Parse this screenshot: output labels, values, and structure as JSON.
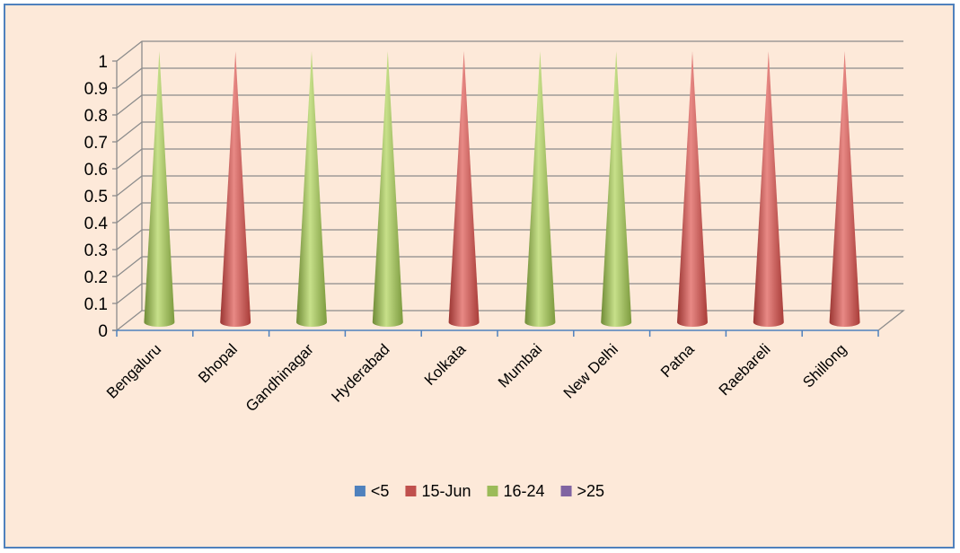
{
  "chart_data": {
    "type": "bar",
    "bar_shape": "cone",
    "view": "3d",
    "categories": [
      "Bengaluru",
      "Bhopal",
      "Gandhinagar",
      "Hyderabad",
      "Kolkata",
      "Mumbai",
      "New Delhi",
      "Patna",
      "Raebareli",
      "Shillong"
    ],
    "values": [
      1,
      1,
      1,
      1,
      1,
      1,
      1,
      1,
      1,
      1
    ],
    "value_series": [
      "16-24",
      "15-Jun",
      "16-24",
      "16-24",
      "15-Jun",
      "16-24",
      "16-24",
      "15-Jun",
      "15-Jun",
      "15-Jun"
    ],
    "series": [
      {
        "name": "<5",
        "color": "#4f81bd",
        "values": [
          0,
          0,
          0,
          0,
          0,
          0,
          0,
          0,
          0,
          0
        ]
      },
      {
        "name": "15-Jun",
        "color": "#c0504d",
        "values": [
          0,
          1,
          0,
          0,
          1,
          0,
          0,
          1,
          1,
          1
        ]
      },
      {
        "name": "16-24",
        "color": "#9bbb59",
        "values": [
          1,
          0,
          1,
          1,
          0,
          1,
          1,
          0,
          0,
          0
        ]
      },
      {
        "name": ">25",
        "color": "#8064a2",
        "values": [
          0,
          0,
          0,
          0,
          0,
          0,
          0,
          0,
          0,
          0
        ]
      }
    ],
    "ylim": [
      0,
      1
    ],
    "yticks": [
      "0",
      "0.1",
      "0.2",
      "0.3",
      "0.4",
      "0.5",
      "0.6",
      "0.7",
      "0.8",
      "0.9",
      "1"
    ],
    "grid": true,
    "legend_position": "bottom",
    "title": "",
    "xlabel": "",
    "ylabel": ""
  }
}
